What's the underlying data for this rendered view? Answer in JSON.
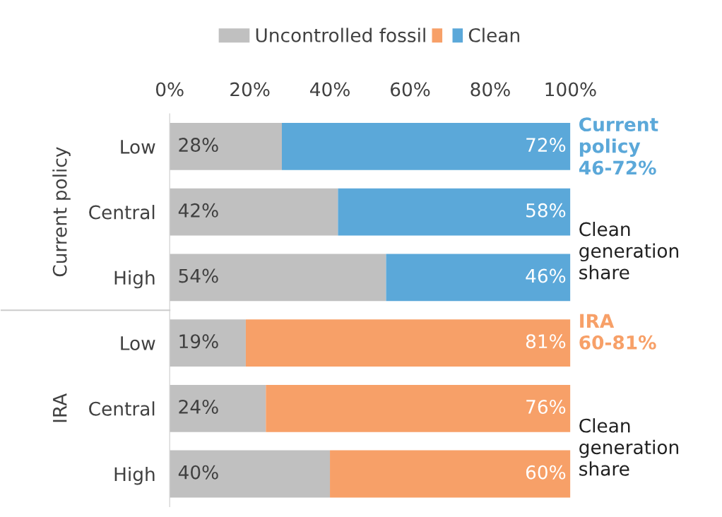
{
  "chart_data": {
    "type": "bar",
    "orientation": "horizontal",
    "stacked": true,
    "categories": [
      "Low",
      "Central",
      "High",
      "Low",
      "Central",
      "High"
    ],
    "series": [
      {
        "name": "Uncontrolled fossil",
        "color": "#c0c0c0",
        "values": [
          28,
          42,
          54,
          19,
          24,
          40
        ],
        "value_labels": [
          "28%",
          "42%",
          "54%",
          "19%",
          "24%",
          "40%"
        ]
      },
      {
        "name": "Clean",
        "colors": [
          "#5ba8d9",
          "#5ba8d9",
          "#5ba8d9",
          "#f7a068",
          "#f7a068",
          "#f7a068"
        ],
        "values": [
          72,
          58,
          46,
          81,
          76,
          60
        ],
        "value_labels": [
          "72%",
          "58%",
          "46%",
          "81%",
          "76%",
          "60%"
        ]
      }
    ],
    "xlim": [
      0,
      100
    ],
    "xticks": [
      {
        "value": 0,
        "label": "0%"
      },
      {
        "value": 20,
        "label": "20%"
      },
      {
        "value": 40,
        "label": "40%"
      },
      {
        "value": 60,
        "label": "60%"
      },
      {
        "value": 80,
        "label": "80%"
      },
      {
        "value": 100,
        "label": "100%"
      }
    ],
    "annotations": [
      "Current policy",
      "IRA",
      "Current\npolicy\n46-72%",
      "Clean\ngeneration\nshare",
      "IRA\n60-81%",
      "Clean\ngeneration\nshare"
    ],
    "legend": "top",
    "grid": false
  }
}
